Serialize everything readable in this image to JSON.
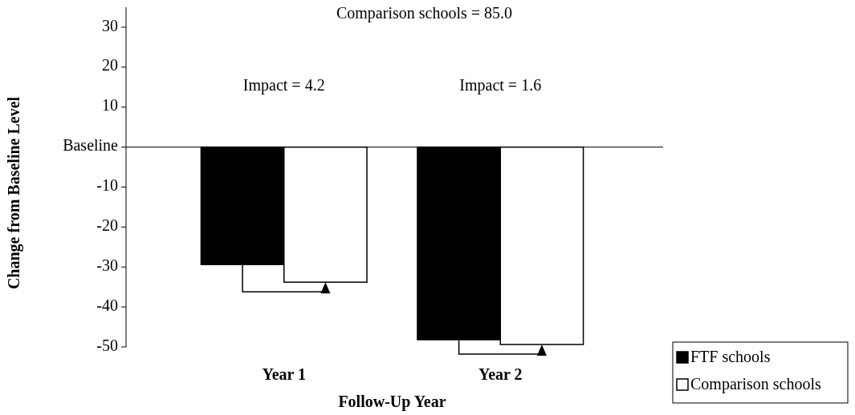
{
  "chart_data": {
    "type": "bar",
    "xlabel": "Follow-Up Year",
    "ylabel": "Change from Baseline Level",
    "categories": [
      "Year 1",
      "Year 2"
    ],
    "series": [
      {
        "name": "FTF schools",
        "color": "#000000",
        "values": [
          -29.4,
          -48.2
        ]
      },
      {
        "name": "Comparison schools",
        "color": "#ffffff",
        "values": [
          -33.8,
          -49.4
        ]
      }
    ],
    "ylim": [
      -50,
      35
    ],
    "yticks": [
      -50,
      -40,
      -30,
      -20,
      -10,
      {
        "value": 0,
        "label": "Baseline"
      },
      10,
      20,
      30
    ],
    "annotations": [
      "Comparison schools = 85.0",
      "Impact = 4.2",
      "Impact = 1.6"
    ],
    "legend": "bottom right"
  }
}
